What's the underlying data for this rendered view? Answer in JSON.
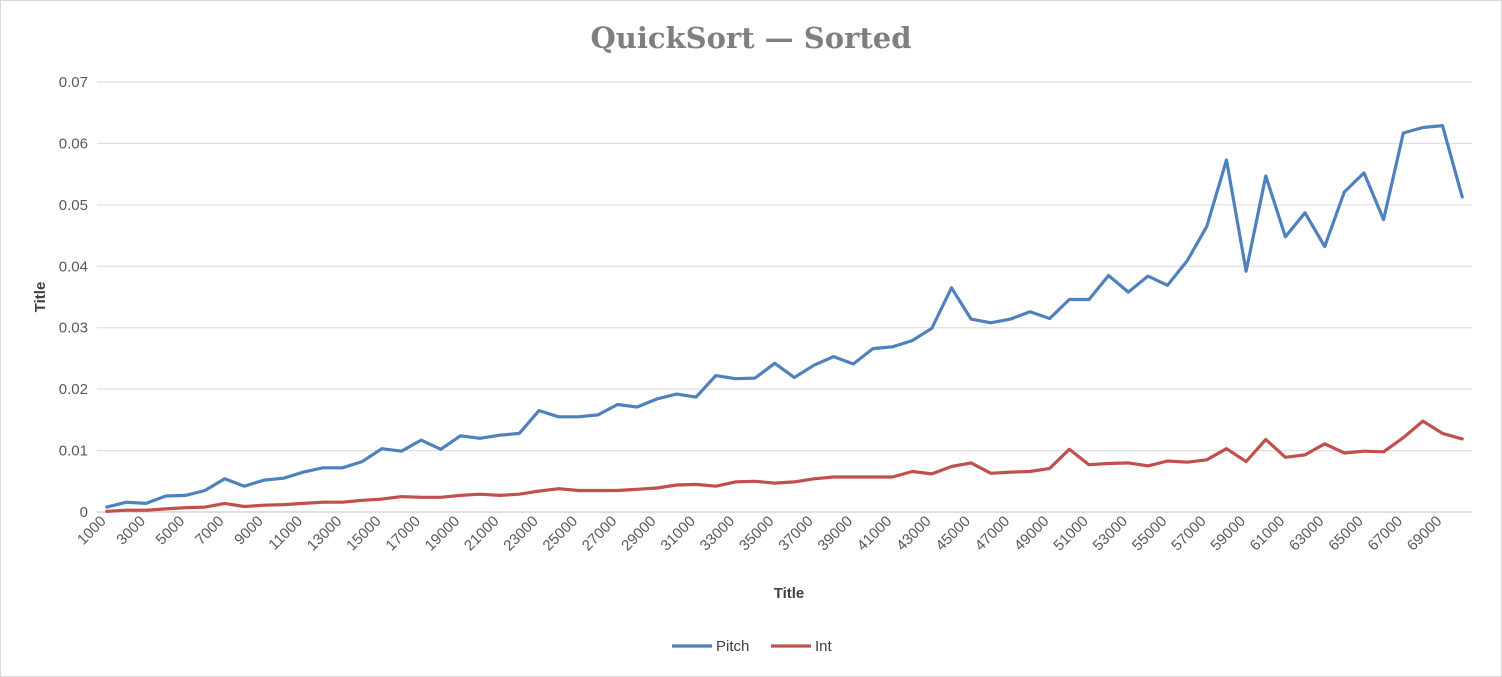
{
  "chart_data": {
    "type": "line",
    "title": "QuickSort — Sorted",
    "xlabel": "Title",
    "ylabel": "Title",
    "ylim": [
      0,
      0.07
    ],
    "yticks": [
      "0",
      "0.01",
      "0.02",
      "0.03",
      "0.04",
      "0.05",
      "0.06",
      "0.07"
    ],
    "grid": true,
    "legend_position": "bottom",
    "x": [
      1000,
      2000,
      3000,
      4000,
      5000,
      6000,
      7000,
      8000,
      9000,
      10000,
      11000,
      12000,
      13000,
      14000,
      15000,
      16000,
      17000,
      18000,
      19000,
      20000,
      21000,
      22000,
      23000,
      24000,
      25000,
      26000,
      27000,
      28000,
      29000,
      30000,
      31000,
      32000,
      33000,
      34000,
      35000,
      36000,
      37000,
      38000,
      39000,
      40000,
      41000,
      42000,
      43000,
      44000,
      45000,
      46000,
      47000,
      48000,
      49000,
      50000,
      51000,
      52000,
      53000,
      54000,
      55000,
      56000,
      57000,
      58000,
      59000,
      60000,
      61000,
      62000,
      63000,
      64000,
      65000,
      66000,
      67000,
      68000,
      69000,
      70000
    ],
    "xtick_labels": [
      "1000",
      "3000",
      "5000",
      "7000",
      "9000",
      "11000",
      "13000",
      "15000",
      "17000",
      "19000",
      "21000",
      "23000",
      "25000",
      "27000",
      "29000",
      "31000",
      "33000",
      "35000",
      "37000",
      "39000",
      "41000",
      "43000",
      "45000",
      "47000",
      "49000",
      "51000",
      "53000",
      "55000",
      "57000",
      "59000",
      "61000",
      "63000",
      "65000",
      "67000",
      "69000"
    ],
    "series": [
      {
        "name": "Pitch",
        "color": "#4f81bd",
        "values": [
          0.0008,
          0.0016,
          0.0014,
          0.0026,
          0.0027,
          0.0035,
          0.0054,
          0.0042,
          0.0052,
          0.0055,
          0.0065,
          0.0072,
          0.0072,
          0.0082,
          0.0103,
          0.0099,
          0.0117,
          0.0102,
          0.0124,
          0.012,
          0.0125,
          0.0128,
          0.0165,
          0.0155,
          0.0155,
          0.0158,
          0.0175,
          0.0171,
          0.0184,
          0.0192,
          0.0187,
          0.0222,
          0.0217,
          0.0218,
          0.0242,
          0.0219,
          0.0239,
          0.0253,
          0.0241,
          0.0266,
          0.0269,
          0.0279,
          0.0299,
          0.0365,
          0.0314,
          0.0308,
          0.0314,
          0.0326,
          0.0315,
          0.0346,
          0.0346,
          0.0385,
          0.0358,
          0.0384,
          0.0369,
          0.0409,
          0.0465,
          0.0573,
          0.0392,
          0.0547,
          0.0448,
          0.0487,
          0.0432,
          0.0521,
          0.0552,
          0.0476,
          0.0617,
          0.0626,
          0.0629,
          0.0513
        ]
      },
      {
        "name": "Int",
        "color": "#c0504d",
        "values": [
          0.0001,
          0.0003,
          0.0003,
          0.0005,
          0.0007,
          0.0008,
          0.0014,
          0.0009,
          0.0011,
          0.0012,
          0.0014,
          0.0016,
          0.0016,
          0.0019,
          0.0021,
          0.0025,
          0.0024,
          0.0024,
          0.0027,
          0.0029,
          0.0027,
          0.0029,
          0.0034,
          0.0038,
          0.0035,
          0.0035,
          0.0035,
          0.0037,
          0.0039,
          0.0044,
          0.0045,
          0.0042,
          0.0049,
          0.005,
          0.0047,
          0.0049,
          0.0054,
          0.0057,
          0.0057,
          0.0057,
          0.0057,
          0.0066,
          0.0062,
          0.0074,
          0.008,
          0.0063,
          0.0065,
          0.0066,
          0.0071,
          0.0102,
          0.0077,
          0.0079,
          0.008,
          0.0075,
          0.0083,
          0.0081,
          0.0085,
          0.0103,
          0.0082,
          0.0118,
          0.0089,
          0.0093,
          0.0111,
          0.0096,
          0.0099,
          0.0098,
          0.0121,
          0.0148,
          0.0128,
          0.0119
        ]
      }
    ]
  }
}
